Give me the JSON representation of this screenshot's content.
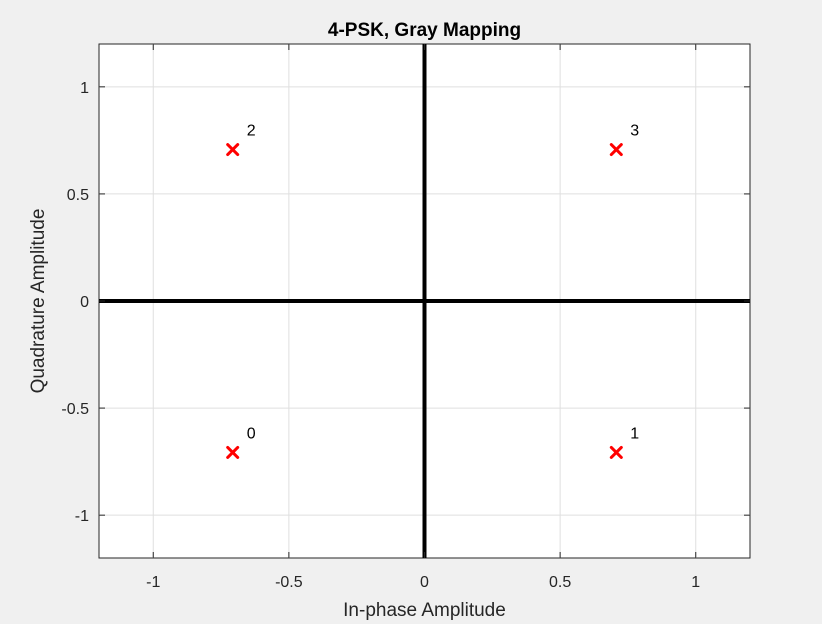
{
  "chart_data": {
    "type": "scatter",
    "title": "4-PSK, Gray Mapping",
    "xlabel": "In-phase Amplitude",
    "ylabel": "Quadrature Amplitude",
    "xlim": [
      -1.2,
      1.2
    ],
    "ylim": [
      -1.2,
      1.2
    ],
    "xticks": [
      -1,
      -0.5,
      0,
      0.5,
      1
    ],
    "yticks": [
      -1,
      -0.5,
      0,
      0.5,
      1
    ],
    "xtick_labels": [
      "-1",
      "-0.5",
      "0",
      "0.5",
      "1"
    ],
    "ytick_labels": [
      "-1",
      "-0.5",
      "0",
      "0.5",
      "1"
    ],
    "grid": true,
    "marker": "x",
    "marker_color": "#ff0000",
    "axis_line_color": "#000000",
    "points": [
      {
        "x": -0.7071,
        "y": -0.7071,
        "label": "0"
      },
      {
        "x": 0.7071,
        "y": -0.7071,
        "label": "1"
      },
      {
        "x": -0.7071,
        "y": 0.7071,
        "label": "2"
      },
      {
        "x": 0.7071,
        "y": 0.7071,
        "label": "3"
      }
    ]
  }
}
